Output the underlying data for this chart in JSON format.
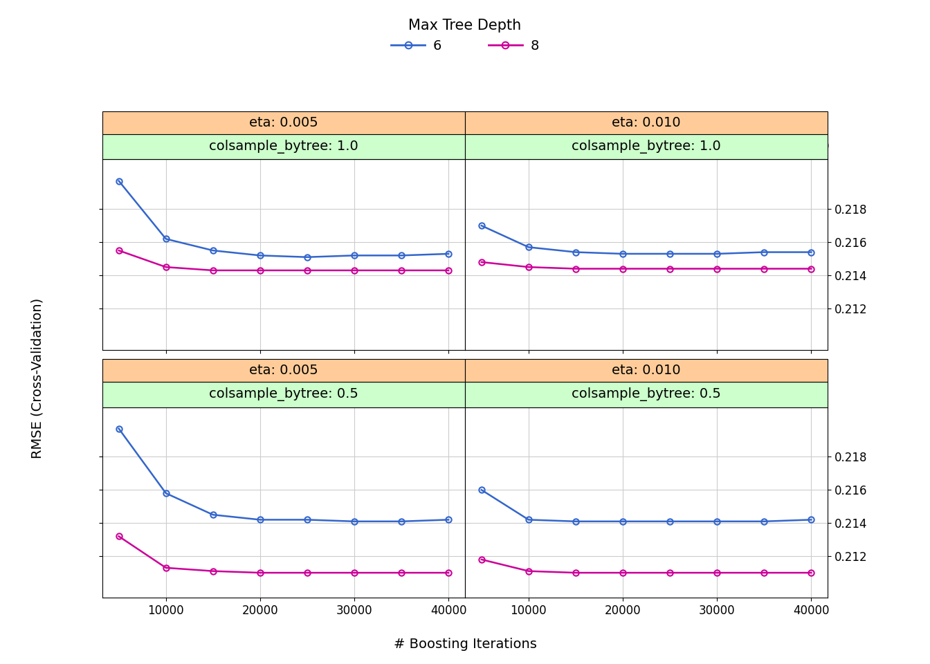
{
  "x_values": [
    5000,
    10000,
    15000,
    20000,
    25000,
    30000,
    35000,
    40000
  ],
  "panels": [
    {
      "col": 0,
      "row": 0,
      "colsample_bytree": "1.0",
      "eta": "0.005",
      "blue_y": [
        0.2197,
        0.2162,
        0.2155,
        0.2152,
        0.2151,
        0.2152,
        0.2152,
        0.2153
      ],
      "magenta_y": [
        0.2155,
        0.2145,
        0.2143,
        0.2143,
        0.2143,
        0.2143,
        0.2143,
        0.2143
      ]
    },
    {
      "col": 1,
      "row": 0,
      "colsample_bytree": "1.0",
      "eta": "0.010",
      "blue_y": [
        0.217,
        0.2157,
        0.2154,
        0.2153,
        0.2153,
        0.2153,
        0.2154,
        0.2154
      ],
      "magenta_y": [
        0.2148,
        0.2145,
        0.2144,
        0.2144,
        0.2144,
        0.2144,
        0.2144,
        0.2144
      ]
    },
    {
      "col": 0,
      "row": 1,
      "colsample_bytree": "0.5",
      "eta": "0.005",
      "blue_y": [
        0.2197,
        0.2158,
        0.2145,
        0.2142,
        0.2142,
        0.2141,
        0.2141,
        0.2142
      ],
      "magenta_y": [
        0.2132,
        0.2113,
        0.2111,
        0.211,
        0.211,
        0.211,
        0.211,
        0.211
      ]
    },
    {
      "col": 1,
      "row": 1,
      "colsample_bytree": "0.5",
      "eta": "0.010",
      "blue_y": [
        0.216,
        0.2142,
        0.2141,
        0.2141,
        0.2141,
        0.2141,
        0.2141,
        0.2142
      ],
      "magenta_y": [
        0.2118,
        0.2111,
        0.211,
        0.211,
        0.211,
        0.211,
        0.211,
        0.211
      ]
    }
  ],
  "blue_color": "#3366CC",
  "magenta_color": "#CC0099",
  "strip_green": "#CCFFCC",
  "strip_orange": "#FFCC99",
  "xlabel": "# Boosting Iterations",
  "ylabel": "RMSE (Cross-Validation)",
  "legend_title": "Max Tree Depth",
  "legend_entries": [
    "6",
    "8"
  ],
  "title_fontsize": 15,
  "label_fontsize": 14,
  "tick_fontsize": 12,
  "strip_fontsize": 14,
  "ylim": [
    0.2095,
    0.221
  ],
  "yticks": [
    0.212,
    0.214,
    0.216,
    0.218
  ],
  "xticks": [
    10000,
    20000,
    30000,
    40000
  ],
  "background_color": "white",
  "plot_bg_color": "white",
  "grid_color": "#CCCCCC"
}
